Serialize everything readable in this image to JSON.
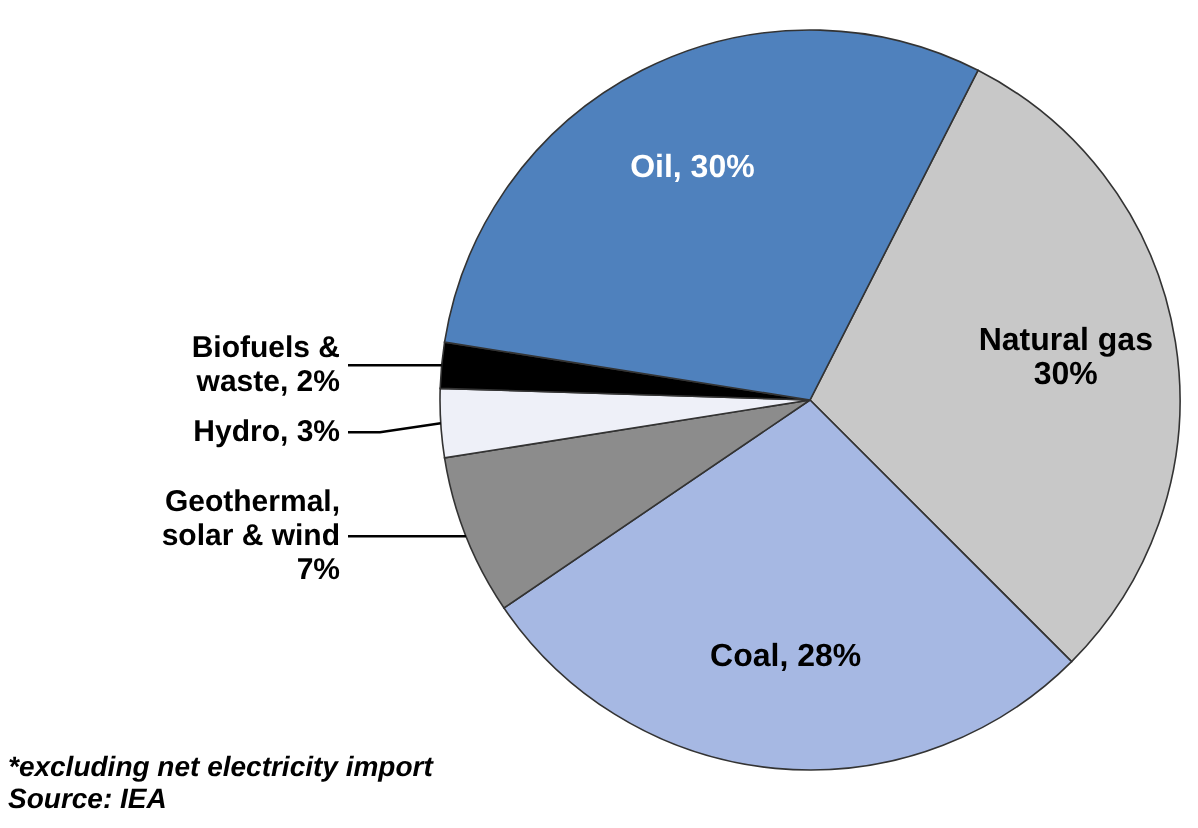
{
  "chart_data": {
    "type": "pie",
    "categories": [
      "Natural gas",
      "Coal",
      "Geothermal, solar & wind",
      "Hydro",
      "Biofuels & waste",
      "Oil"
    ],
    "values": [
      30,
      28,
      7,
      3,
      2,
      30
    ],
    "value_labels": [
      "30%",
      "28%",
      "7%",
      "3%",
      "2%",
      "30%"
    ],
    "colors": [
      "#c8c8c8",
      "#a6b8e3",
      "#8c8c8c",
      "#eef0f8",
      "#000000",
      "#4f81bd"
    ],
    "annotations": [
      "*excluding net electricity import",
      "Source: IEA"
    ]
  }
}
